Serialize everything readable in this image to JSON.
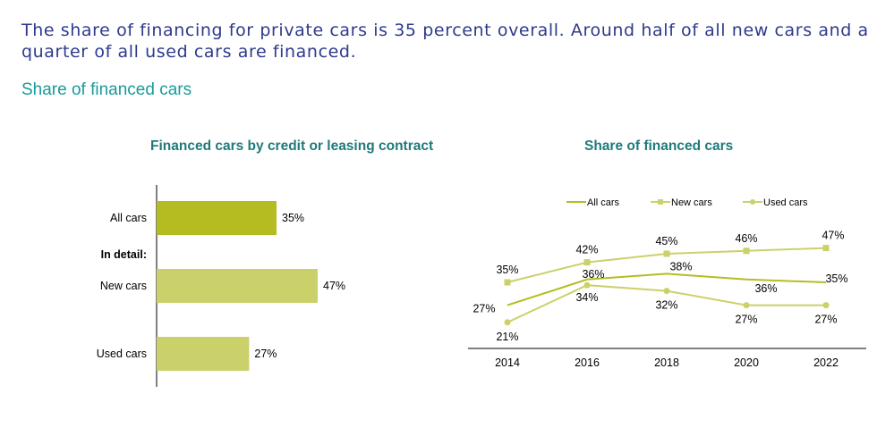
{
  "headline": "The share of financing for private cars is 35 percent overall. Around half of all new cars and a quarter of all used cars are financed.",
  "subtitle": "Share of financed cars",
  "colors": {
    "dark_olive": "#b5bc22",
    "light_olive": "#cbd16a",
    "title_teal": "#1f7a7a",
    "headline_blue": "#2e3a8c"
  },
  "chart_data": [
    {
      "type": "bar",
      "title": "Financed cars by credit or leasing contract",
      "section_label": "In detail:",
      "categories": [
        "All cars",
        "New cars",
        "Used cars"
      ],
      "values": [
        35,
        47,
        27
      ],
      "value_labels": [
        "35%",
        "47%",
        "27%"
      ],
      "xlim": [
        0,
        60
      ]
    },
    {
      "type": "line",
      "title": "Share of financed cars",
      "x": [
        "2014",
        "2016",
        "2018",
        "2020",
        "2022"
      ],
      "ylim": [
        15,
        55
      ],
      "legend_position": "top-right",
      "series": [
        {
          "name": "All cars",
          "marker": "none",
          "values": [
            27,
            36,
            38,
            36,
            35
          ],
          "labels": [
            "27%",
            "36%",
            "38%",
            "36%",
            "35%"
          ]
        },
        {
          "name": "New cars",
          "marker": "square",
          "values": [
            35,
            42,
            45,
            46,
            47
          ],
          "labels": [
            "35%",
            "42%",
            "45%",
            "46%",
            "47%"
          ]
        },
        {
          "name": "Used cars",
          "marker": "circle",
          "values": [
            21,
            34,
            32,
            27,
            27
          ],
          "labels": [
            "21%",
            "34%",
            "32%",
            "27%",
            "27%"
          ]
        }
      ]
    }
  ]
}
